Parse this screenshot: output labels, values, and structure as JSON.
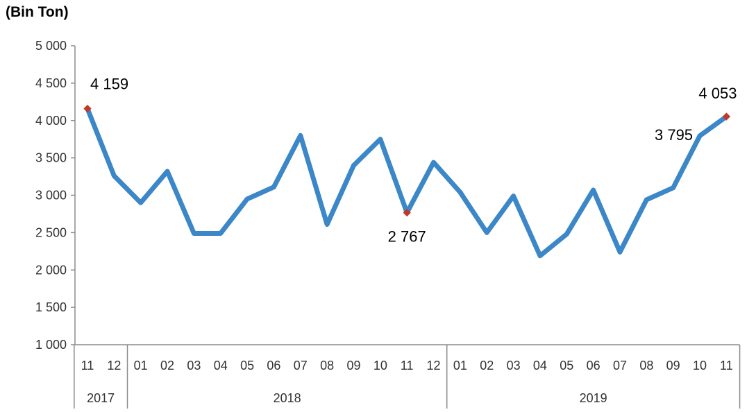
{
  "unit_label": "(Bin Ton)",
  "chart_data": {
    "type": "line",
    "unit": "(Bin Ton)",
    "x": [
      "11",
      "12",
      "01",
      "02",
      "03",
      "04",
      "05",
      "06",
      "07",
      "08",
      "09",
      "10",
      "11",
      "12",
      "01",
      "02",
      "03",
      "04",
      "05",
      "06",
      "07",
      "08",
      "09",
      "10",
      "11"
    ],
    "year_groups": [
      {
        "label": "2017",
        "count": 2
      },
      {
        "label": "2018",
        "count": 12
      },
      {
        "label": "2019",
        "count": 11
      }
    ],
    "series": [
      {
        "values": [
          4159,
          3260,
          2900,
          3320,
          2490,
          2490,
          2950,
          3110,
          3800,
          2610,
          3400,
          3750,
          2767,
          3440,
          3040,
          2500,
          2990,
          2190,
          2480,
          3070,
          2240,
          2940,
          3100,
          3795,
          4053
        ],
        "color": "#3b87c7"
      }
    ],
    "ylim": [
      1000,
      5000
    ],
    "yticks": [
      1000,
      1500,
      2000,
      2500,
      3000,
      3500,
      4000,
      4500,
      5000
    ],
    "ytick_labels": [
      "1 000",
      "1 500",
      "2 000",
      "2 500",
      "3 000",
      "3 500",
      "4 000",
      "4 500",
      "5 000"
    ],
    "annotations": [
      {
        "index": 0,
        "label": "4 159"
      },
      {
        "index": 12,
        "label": "2 767"
      },
      {
        "index": 23,
        "label": "3 795"
      },
      {
        "index": 24,
        "label": "4 053"
      }
    ],
    "marker_indices": [
      0,
      12,
      24
    ],
    "marker_color": "#c0392b",
    "grid": false,
    "legend": "none"
  }
}
